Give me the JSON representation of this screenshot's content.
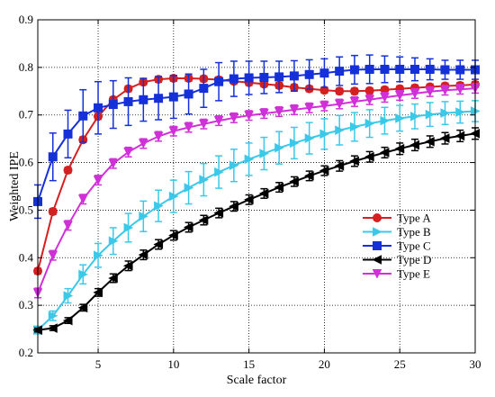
{
  "chart_data": {
    "type": "line",
    "title": "",
    "xlabel": "Scale factor",
    "ylabel": "Weighted IPE",
    "xlim": [
      1,
      30
    ],
    "ylim": [
      0.2,
      0.9
    ],
    "grid": true,
    "legend_position": "center-right",
    "x_ticks": [
      "5",
      "10",
      "15",
      "20",
      "25",
      "30"
    ],
    "y_ticks": [
      "0.2",
      "0.3",
      "0.4",
      "0.5",
      "0.6",
      "0.7",
      "0.8",
      "0.9"
    ],
    "x": [
      1,
      2,
      3,
      4,
      5,
      6,
      7,
      8,
      9,
      10,
      11,
      12,
      13,
      14,
      15,
      16,
      17,
      18,
      19,
      20,
      21,
      22,
      23,
      24,
      25,
      26,
      27,
      28,
      29,
      30
    ],
    "series": [
      {
        "name": "Type A",
        "color": "#d42020",
        "marker": "circle",
        "values": [
          0.372,
          0.497,
          0.584,
          0.648,
          0.697,
          0.732,
          0.755,
          0.769,
          0.775,
          0.777,
          0.777,
          0.776,
          0.774,
          0.771,
          0.768,
          0.765,
          0.762,
          0.758,
          0.755,
          0.752,
          0.75,
          0.75,
          0.751,
          0.753,
          0.755,
          0.757,
          0.759,
          0.761,
          0.762,
          0.764
        ],
        "errors": [
          0.006,
          0.006,
          0.006,
          0.006,
          0.006,
          0.006,
          0.006,
          0.006,
          0.006,
          0.006,
          0.006,
          0.006,
          0.006,
          0.006,
          0.006,
          0.006,
          0.006,
          0.006,
          0.006,
          0.006,
          0.006,
          0.006,
          0.006,
          0.006,
          0.006,
          0.006,
          0.006,
          0.006,
          0.006,
          0.006
        ]
      },
      {
        "name": "Type B",
        "color": "#3cc8e8",
        "marker": "triangle-right",
        "values": [
          0.248,
          0.278,
          0.32,
          0.365,
          0.405,
          0.435,
          0.463,
          0.487,
          0.509,
          0.529,
          0.547,
          0.564,
          0.58,
          0.594,
          0.607,
          0.619,
          0.631,
          0.641,
          0.651,
          0.66,
          0.668,
          0.675,
          0.682,
          0.688,
          0.693,
          0.697,
          0.701,
          0.704,
          0.706,
          0.708
        ],
        "errors": [
          0.008,
          0.01,
          0.015,
          0.02,
          0.025,
          0.028,
          0.03,
          0.032,
          0.033,
          0.034,
          0.034,
          0.034,
          0.034,
          0.034,
          0.034,
          0.034,
          0.034,
          0.033,
          0.033,
          0.032,
          0.031,
          0.03,
          0.029,
          0.028,
          0.027,
          0.026,
          0.025,
          0.024,
          0.023,
          0.022
        ]
      },
      {
        "name": "Type C",
        "color": "#1530d8",
        "marker": "square",
        "values": [
          0.518,
          0.612,
          0.66,
          0.698,
          0.715,
          0.722,
          0.728,
          0.732,
          0.735,
          0.738,
          0.744,
          0.756,
          0.77,
          0.776,
          0.778,
          0.779,
          0.78,
          0.782,
          0.785,
          0.788,
          0.792,
          0.795,
          0.796,
          0.796,
          0.796,
          0.796,
          0.796,
          0.795,
          0.795,
          0.795
        ],
        "errors": [
          0.035,
          0.05,
          0.05,
          0.055,
          0.055,
          0.05,
          0.05,
          0.045,
          0.045,
          0.045,
          0.042,
          0.04,
          0.04,
          0.037,
          0.035,
          0.034,
          0.033,
          0.032,
          0.031,
          0.03,
          0.03,
          0.03,
          0.03,
          0.028,
          0.026,
          0.024,
          0.022,
          0.02,
          0.02,
          0.02
        ]
      },
      {
        "name": "Type D",
        "color": "#000000",
        "marker": "triangle-left",
        "values": [
          0.248,
          0.252,
          0.268,
          0.295,
          0.327,
          0.357,
          0.383,
          0.406,
          0.428,
          0.447,
          0.464,
          0.479,
          0.494,
          0.508,
          0.522,
          0.535,
          0.548,
          0.56,
          0.572,
          0.583,
          0.593,
          0.603,
          0.612,
          0.621,
          0.629,
          0.637,
          0.644,
          0.651,
          0.656,
          0.661
        ],
        "errors": [
          0.004,
          0.005,
          0.006,
          0.007,
          0.008,
          0.009,
          0.01,
          0.01,
          0.01,
          0.01,
          0.01,
          0.01,
          0.01,
          0.01,
          0.01,
          0.01,
          0.01,
          0.01,
          0.01,
          0.01,
          0.011,
          0.011,
          0.011,
          0.011,
          0.012,
          0.012,
          0.012,
          0.012,
          0.012,
          0.012
        ]
      },
      {
        "name": "Type E",
        "color": "#d030d8",
        "marker": "triangle-down",
        "values": [
          0.326,
          0.405,
          0.468,
          0.523,
          0.563,
          0.598,
          0.622,
          0.64,
          0.655,
          0.666,
          0.674,
          0.681,
          0.688,
          0.694,
          0.699,
          0.703,
          0.707,
          0.711,
          0.715,
          0.719,
          0.723,
          0.728,
          0.732,
          0.737,
          0.741,
          0.745,
          0.749,
          0.752,
          0.754,
          0.756
        ],
        "errors": [
          0.01,
          0.01,
          0.01,
          0.01,
          0.01,
          0.01,
          0.01,
          0.01,
          0.01,
          0.01,
          0.01,
          0.01,
          0.01,
          0.01,
          0.01,
          0.01,
          0.01,
          0.01,
          0.01,
          0.01,
          0.01,
          0.01,
          0.01,
          0.01,
          0.01,
          0.01,
          0.01,
          0.01,
          0.01,
          0.01
        ]
      }
    ]
  }
}
